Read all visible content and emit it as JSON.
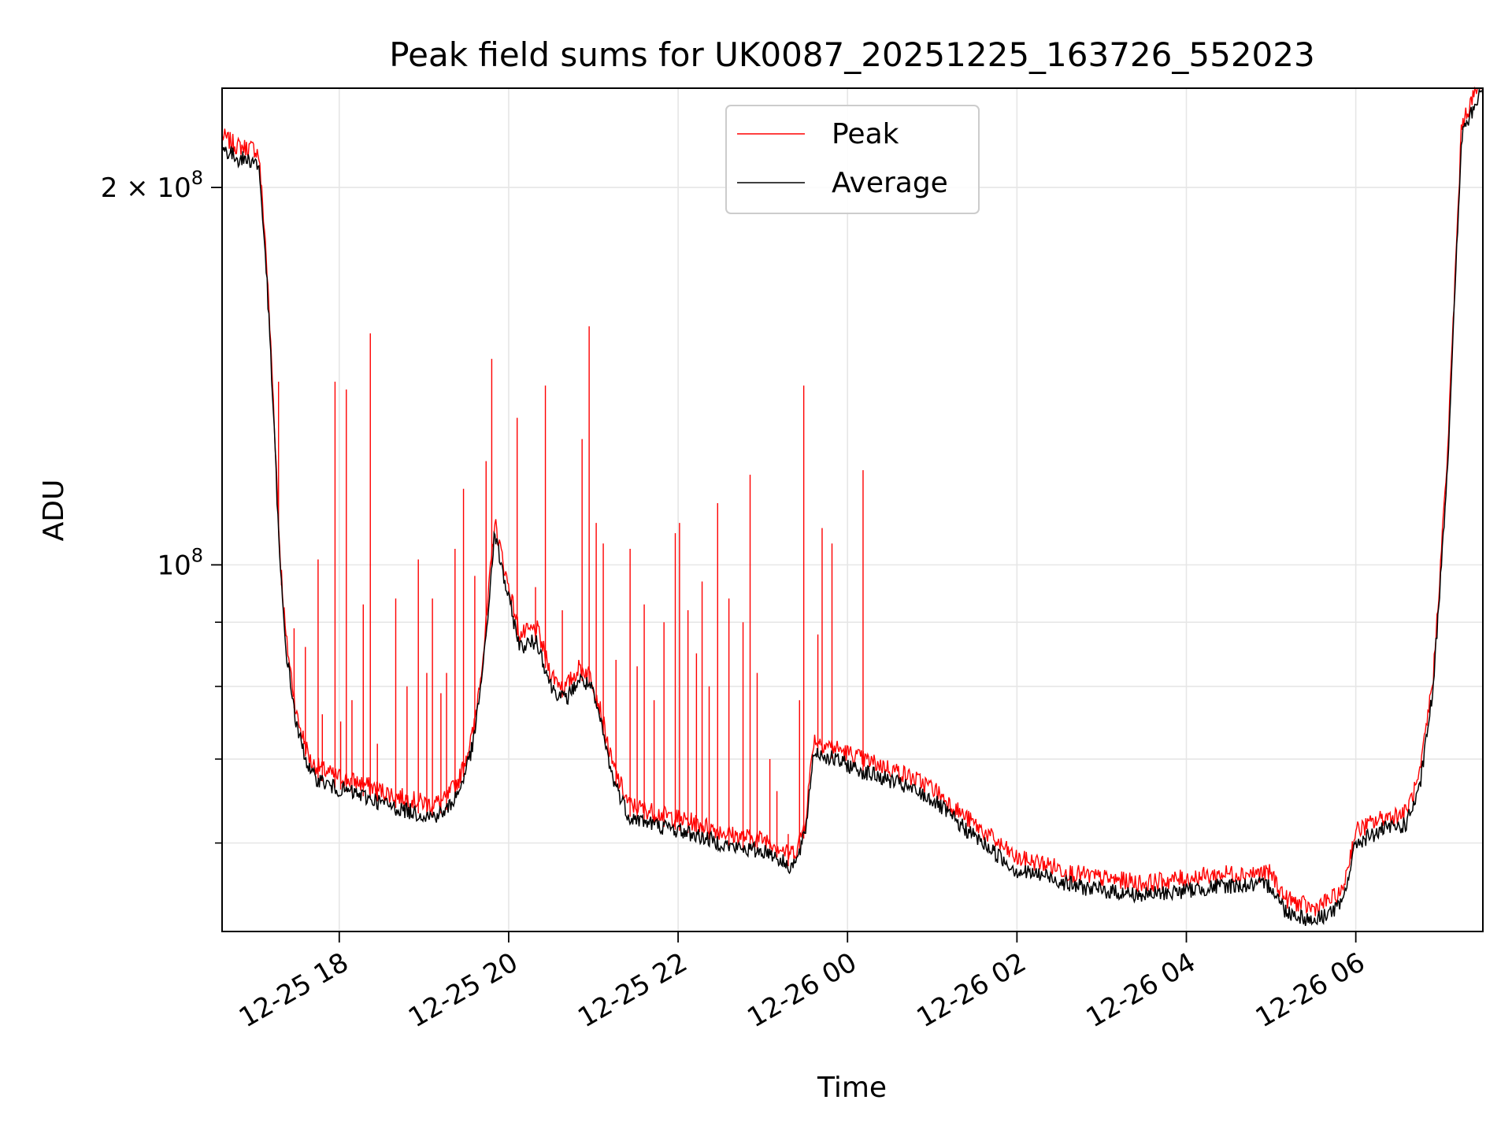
{
  "chart_data": {
    "type": "line",
    "title": "Peak field sums for UK0087_20251225_163726_552023",
    "xlabel": "Time",
    "ylabel": "ADU",
    "y_scale": "log",
    "ylim": [
      51000000,
      240000000
    ],
    "xlim": [
      "2025-12-25T16:37",
      "2025-12-26T07:30"
    ],
    "x_ticks": [
      {
        "t": "2025-12-25T18:00",
        "label": "12-25 18"
      },
      {
        "t": "2025-12-25T20:00",
        "label": "12-25 20"
      },
      {
        "t": "2025-12-25T22:00",
        "label": "12-25 22"
      },
      {
        "t": "2025-12-26T00:00",
        "label": "12-26 00"
      },
      {
        "t": "2025-12-26T02:00",
        "label": "12-26 02"
      },
      {
        "t": "2025-12-26T04:00",
        "label": "12-26 04"
      },
      {
        "t": "2025-12-26T06:00",
        "label": "12-26 06"
      }
    ],
    "y_ticks": [
      {
        "value": 200000000,
        "label": "2 × 10",
        "exp": "8"
      },
      {
        "value": 100000000,
        "label": "10",
        "exp": "8"
      }
    ],
    "y_minor_ticks": [
      60000000,
      70000000,
      80000000,
      90000000
    ],
    "grid": true,
    "legend_position": "top-center",
    "series": [
      {
        "name": "Peak",
        "color": "#ff0000",
        "spikes": [
          [
            "2025-12-25T17:17",
            140000000
          ],
          [
            "2025-12-25T17:19",
            98000000
          ],
          [
            "2025-12-25T17:28",
            89000000
          ],
          [
            "2025-12-25T17:36",
            86000000
          ],
          [
            "2025-12-25T17:45",
            101000000
          ],
          [
            "2025-12-25T17:48",
            76000000
          ],
          [
            "2025-12-25T17:57",
            140000000
          ],
          [
            "2025-12-25T18:01",
            75000000
          ],
          [
            "2025-12-25T18:05",
            138000000
          ],
          [
            "2025-12-25T18:09",
            78000000
          ],
          [
            "2025-12-25T18:17",
            93000000
          ],
          [
            "2025-12-25T18:22",
            153000000
          ],
          [
            "2025-12-25T18:27",
            72000000
          ],
          [
            "2025-12-25T18:40",
            94000000
          ],
          [
            "2025-12-25T18:48",
            80000000
          ],
          [
            "2025-12-25T18:56",
            101000000
          ],
          [
            "2025-12-25T19:02",
            82000000
          ],
          [
            "2025-12-25T19:06",
            94000000
          ],
          [
            "2025-12-25T19:12",
            79000000
          ],
          [
            "2025-12-25T19:16",
            82000000
          ],
          [
            "2025-12-25T19:22",
            103000000
          ],
          [
            "2025-12-25T19:28",
            115000000
          ],
          [
            "2025-12-25T19:36",
            98000000
          ],
          [
            "2025-12-25T19:44",
            121000000
          ],
          [
            "2025-12-25T19:48",
            146000000
          ],
          [
            "2025-12-25T20:06",
            131000000
          ],
          [
            "2025-12-25T20:19",
            96000000
          ],
          [
            "2025-12-25T20:26",
            139000000
          ],
          [
            "2025-12-25T20:38",
            92000000
          ],
          [
            "2025-12-25T20:52",
            126000000
          ],
          [
            "2025-12-25T20:57",
            155000000
          ],
          [
            "2025-12-25T21:02",
            108000000
          ],
          [
            "2025-12-25T21:07",
            104000000
          ],
          [
            "2025-12-25T21:16",
            84000000
          ],
          [
            "2025-12-25T21:26",
            103000000
          ],
          [
            "2025-12-25T21:31",
            83000000
          ],
          [
            "2025-12-25T21:36",
            93000000
          ],
          [
            "2025-12-25T21:43",
            78000000
          ],
          [
            "2025-12-25T21:50",
            90000000
          ],
          [
            "2025-12-25T21:58",
            106000000
          ],
          [
            "2025-12-25T22:01",
            108000000
          ],
          [
            "2025-12-25T22:07",
            92000000
          ],
          [
            "2025-12-25T22:13",
            85000000
          ],
          [
            "2025-12-25T22:17",
            97000000
          ],
          [
            "2025-12-25T22:22",
            80000000
          ],
          [
            "2025-12-25T22:28",
            112000000
          ],
          [
            "2025-12-25T22:36",
            94000000
          ],
          [
            "2025-12-25T22:46",
            90000000
          ],
          [
            "2025-12-25T22:51",
            118000000
          ],
          [
            "2025-12-25T22:56",
            82000000
          ],
          [
            "2025-12-25T23:05",
            70000000
          ],
          [
            "2025-12-25T23:10",
            66000000
          ],
          [
            "2025-12-25T23:18",
            61000000
          ],
          [
            "2025-12-25T23:26",
            78000000
          ],
          [
            "2025-12-25T23:29",
            139000000
          ],
          [
            "2025-12-25T23:39",
            88000000
          ],
          [
            "2025-12-25T23:42",
            107000000
          ],
          [
            "2025-12-25T23:49",
            104000000
          ],
          [
            "2025-12-25T24:11",
            119000000
          ]
        ]
      },
      {
        "name": "Average",
        "color": "#000000",
        "points": [
          [
            "2025-12-25T16:37",
            215000000
          ],
          [
            "2025-12-25T16:48",
            211000000
          ],
          [
            "2025-12-25T17:00",
            210000000
          ],
          [
            "2025-12-25T17:03",
            208000000
          ],
          [
            "2025-12-25T17:08",
            175000000
          ],
          [
            "2025-12-25T17:13",
            135000000
          ],
          [
            "2025-12-25T17:18",
            100000000
          ],
          [
            "2025-12-25T17:22",
            86000000
          ],
          [
            "2025-12-25T17:30",
            74000000
          ],
          [
            "2025-12-25T17:40",
            68000000
          ],
          [
            "2025-12-25T17:55",
            66500000
          ],
          [
            "2025-12-25T18:15",
            65500000
          ],
          [
            "2025-12-25T18:40",
            64000000
          ],
          [
            "2025-12-25T19:05",
            63000000
          ],
          [
            "2025-12-25T19:15",
            63500000
          ],
          [
            "2025-12-25T19:25",
            66000000
          ],
          [
            "2025-12-25T19:35",
            72000000
          ],
          [
            "2025-12-25T19:43",
            85000000
          ],
          [
            "2025-12-25T19:50",
            106000000
          ],
          [
            "2025-12-25T19:58",
            96000000
          ],
          [
            "2025-12-25T20:08",
            86000000
          ],
          [
            "2025-12-25T20:20",
            87000000
          ],
          [
            "2025-12-25T20:30",
            80000000
          ],
          [
            "2025-12-25T20:40",
            78000000
          ],
          [
            "2025-12-25T20:50",
            81000000
          ],
          [
            "2025-12-25T20:58",
            80000000
          ],
          [
            "2025-12-25T21:05",
            75000000
          ],
          [
            "2025-12-25T21:13",
            68000000
          ],
          [
            "2025-12-25T21:25",
            63000000
          ],
          [
            "2025-12-25T21:45",
            62000000
          ],
          [
            "2025-12-25T22:10",
            61000000
          ],
          [
            "2025-12-25T22:40",
            59500000
          ],
          [
            "2025-12-25T23:05",
            59000000
          ],
          [
            "2025-12-25T23:18",
            57500000
          ],
          [
            "2025-12-25T23:24",
            58000000
          ],
          [
            "2025-12-25T23:30",
            61000000
          ],
          [
            "2025-12-25T23:36",
            71000000
          ],
          [
            "2025-12-25T23:50",
            70000000
          ],
          [
            "2025-12-26T00:10",
            68500000
          ],
          [
            "2025-12-26T00:35",
            67000000
          ],
          [
            "2025-12-26T01:00",
            65000000
          ],
          [
            "2025-12-26T01:20",
            62000000
          ],
          [
            "2025-12-26T01:40",
            59500000
          ],
          [
            "2025-12-26T02:00",
            57000000
          ],
          [
            "2025-12-26T02:20",
            56500000
          ],
          [
            "2025-12-26T02:40",
            55500000
          ],
          [
            "2025-12-26T03:00",
            55000000
          ],
          [
            "2025-12-26T03:30",
            54500000
          ],
          [
            "2025-12-26T04:00",
            55000000
          ],
          [
            "2025-12-26T04:30",
            55500000
          ],
          [
            "2025-12-26T05:00",
            55500000
          ],
          [
            "2025-12-26T05:10",
            53000000
          ],
          [
            "2025-12-26T05:30",
            52000000
          ],
          [
            "2025-12-26T05:50",
            53500000
          ],
          [
            "2025-12-26T06:00",
            60000000
          ],
          [
            "2025-12-26T06:20",
            61500000
          ],
          [
            "2025-12-26T06:35",
            62000000
          ],
          [
            "2025-12-26T06:45",
            66000000
          ],
          [
            "2025-12-26T06:55",
            80000000
          ],
          [
            "2025-12-26T07:05",
            120000000
          ],
          [
            "2025-12-26T07:15",
            220000000
          ],
          [
            "2025-12-26T07:30",
            240000000
          ]
        ]
      }
    ]
  }
}
